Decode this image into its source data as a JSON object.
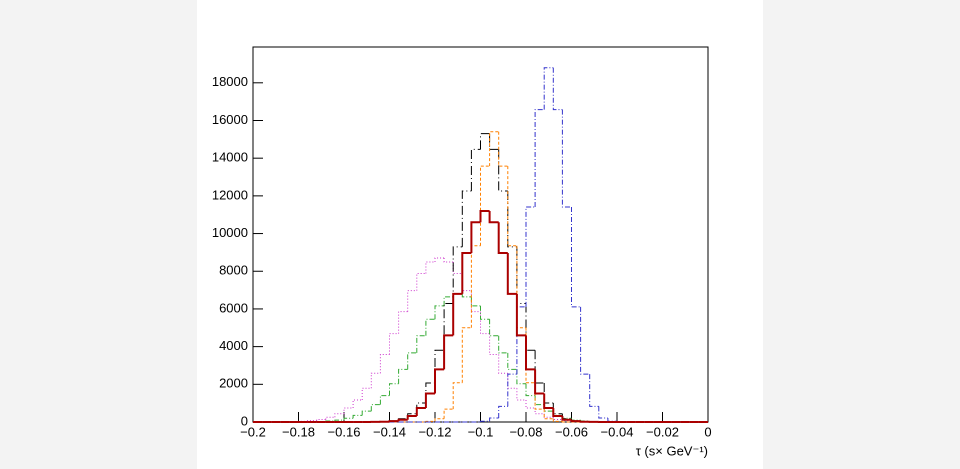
{
  "chart_data": {
    "type": "histogram",
    "x_label": "τ (s× GeV⁻¹)",
    "bins": [
      -0.2,
      -0.196,
      -0.192,
      -0.188,
      -0.184,
      -0.18,
      -0.176,
      -0.172,
      -0.168,
      -0.164,
      -0.16,
      -0.156,
      -0.152,
      -0.148,
      -0.144,
      -0.14,
      -0.136,
      -0.132,
      -0.128,
      -0.124,
      -0.12,
      -0.116,
      -0.112,
      -0.108,
      -0.104,
      -0.1,
      -0.096,
      -0.092,
      -0.088,
      -0.084,
      -0.08,
      -0.076,
      -0.072,
      -0.068,
      -0.064,
      -0.06,
      -0.056,
      -0.052,
      -0.048,
      -0.044,
      -0.04,
      -0.036,
      -0.032,
      -0.028,
      -0.024,
      -0.02,
      -0.016,
      -0.012,
      -0.008,
      -0.004,
      0
    ],
    "series": [
      {
        "color": "#cc33cc",
        "line_style": "dotted",
        "width": 1,
        "values": [
          0,
          0,
          0,
          0,
          0,
          35,
          70,
          130,
          250,
          440,
          740,
          1170,
          1790,
          2590,
          3580,
          4690,
          5860,
          6970,
          7880,
          8490,
          8700,
          8490,
          7880,
          6970,
          5860,
          4690,
          3580,
          2590,
          1790,
          1170,
          740,
          440,
          250,
          130,
          70,
          35,
          0,
          0,
          0,
          0,
          0,
          0,
          0,
          0,
          0,
          0,
          0,
          0,
          0,
          0
        ]
      },
      {
        "color": "#33aa33",
        "line_style": "dashdot",
        "width": 1,
        "values": [
          0,
          0,
          0,
          0,
          0,
          0,
          0,
          27,
          54,
          100,
          200,
          350,
          580,
          920,
          1400,
          2030,
          2790,
          3670,
          4580,
          5450,
          6160,
          6640,
          6800,
          6640,
          6160,
          5450,
          4580,
          3670,
          2790,
          2030,
          1400,
          920,
          580,
          350,
          200,
          100,
          54,
          27,
          0,
          0,
          0,
          0,
          0,
          0,
          0,
          0,
          0,
          0,
          0,
          0
        ]
      },
      {
        "color": "#000000",
        "line_style": "longdashdot",
        "width": 1,
        "values": [
          0,
          0,
          0,
          0,
          0,
          0,
          0,
          0,
          0,
          0,
          0,
          0,
          0,
          5,
          18,
          60,
          170,
          440,
          1010,
          2070,
          3810,
          6290,
          9290,
          12260,
          14470,
          15300,
          14470,
          12260,
          9290,
          6290,
          3810,
          2070,
          1010,
          440,
          170,
          60,
          18,
          5,
          0,
          0,
          0,
          0,
          0,
          0,
          0,
          0,
          0,
          0,
          0,
          0
        ]
      },
      {
        "color": "#ff8000",
        "line_style": "dashed",
        "width": 1,
        "values": [
          0,
          0,
          0,
          0,
          0,
          0,
          0,
          0,
          0,
          0,
          0,
          0,
          0,
          0,
          0,
          0,
          0,
          0,
          0,
          34,
          170,
          680,
          2080,
          5000,
          9350,
          13580,
          15400,
          13580,
          9350,
          5000,
          2080,
          680,
          170,
          34,
          0,
          0,
          0,
          0,
          0,
          0,
          0,
          0,
          0,
          0,
          0,
          0,
          0,
          0,
          0,
          0
        ]
      },
      {
        "color": "#3333cc",
        "line_style": "dashdot",
        "width": 1,
        "values": [
          0,
          0,
          0,
          0,
          0,
          0,
          0,
          0,
          0,
          0,
          0,
          0,
          0,
          0,
          0,
          0,
          0,
          0,
          0,
          0,
          0,
          0,
          0,
          0,
          0,
          41,
          210,
          830,
          2540,
          6110,
          11410,
          16580,
          18800,
          16580,
          11410,
          6110,
          2540,
          830,
          210,
          41,
          0,
          0,
          0,
          0,
          0,
          0,
          0,
          0,
          0,
          0
        ]
      },
      {
        "color": "#aa0000",
        "line_style": "solid",
        "width": 2,
        "values": [
          0,
          0,
          0,
          0,
          0,
          0,
          0,
          0,
          0,
          0,
          0,
          0,
          0,
          4,
          13,
          44,
          120,
          320,
          740,
          1510,
          2790,
          4600,
          6800,
          8970,
          10600,
          11200,
          10600,
          8970,
          6800,
          4600,
          2790,
          1510,
          740,
          320,
          120,
          44,
          13,
          4,
          0,
          0,
          0,
          0,
          0,
          0,
          0,
          0,
          0,
          0,
          0,
          0
        ]
      }
    ],
    "xlim": [
      -0.2,
      0
    ],
    "xticks": [
      {
        "value": -0.2,
        "label": "−0.2"
      },
      {
        "value": -0.18,
        "label": "−0.18"
      },
      {
        "value": -0.16,
        "label": "−0.16"
      },
      {
        "value": -0.14,
        "label": "−0.14"
      },
      {
        "value": -0.12,
        "label": "−0.12"
      },
      {
        "value": -0.1,
        "label": "−0.1"
      },
      {
        "value": -0.08,
        "label": "−0.08"
      },
      {
        "value": -0.06,
        "label": "−0.06"
      },
      {
        "value": -0.04,
        "label": "−0.04"
      },
      {
        "value": -0.02,
        "label": "−0.02"
      },
      0
    ],
    "ylim": [
      0,
      19900
    ],
    "yticks": [
      0,
      2000,
      4000,
      6000,
      8000,
      10000,
      12000,
      14000,
      16000,
      18000
    ]
  }
}
